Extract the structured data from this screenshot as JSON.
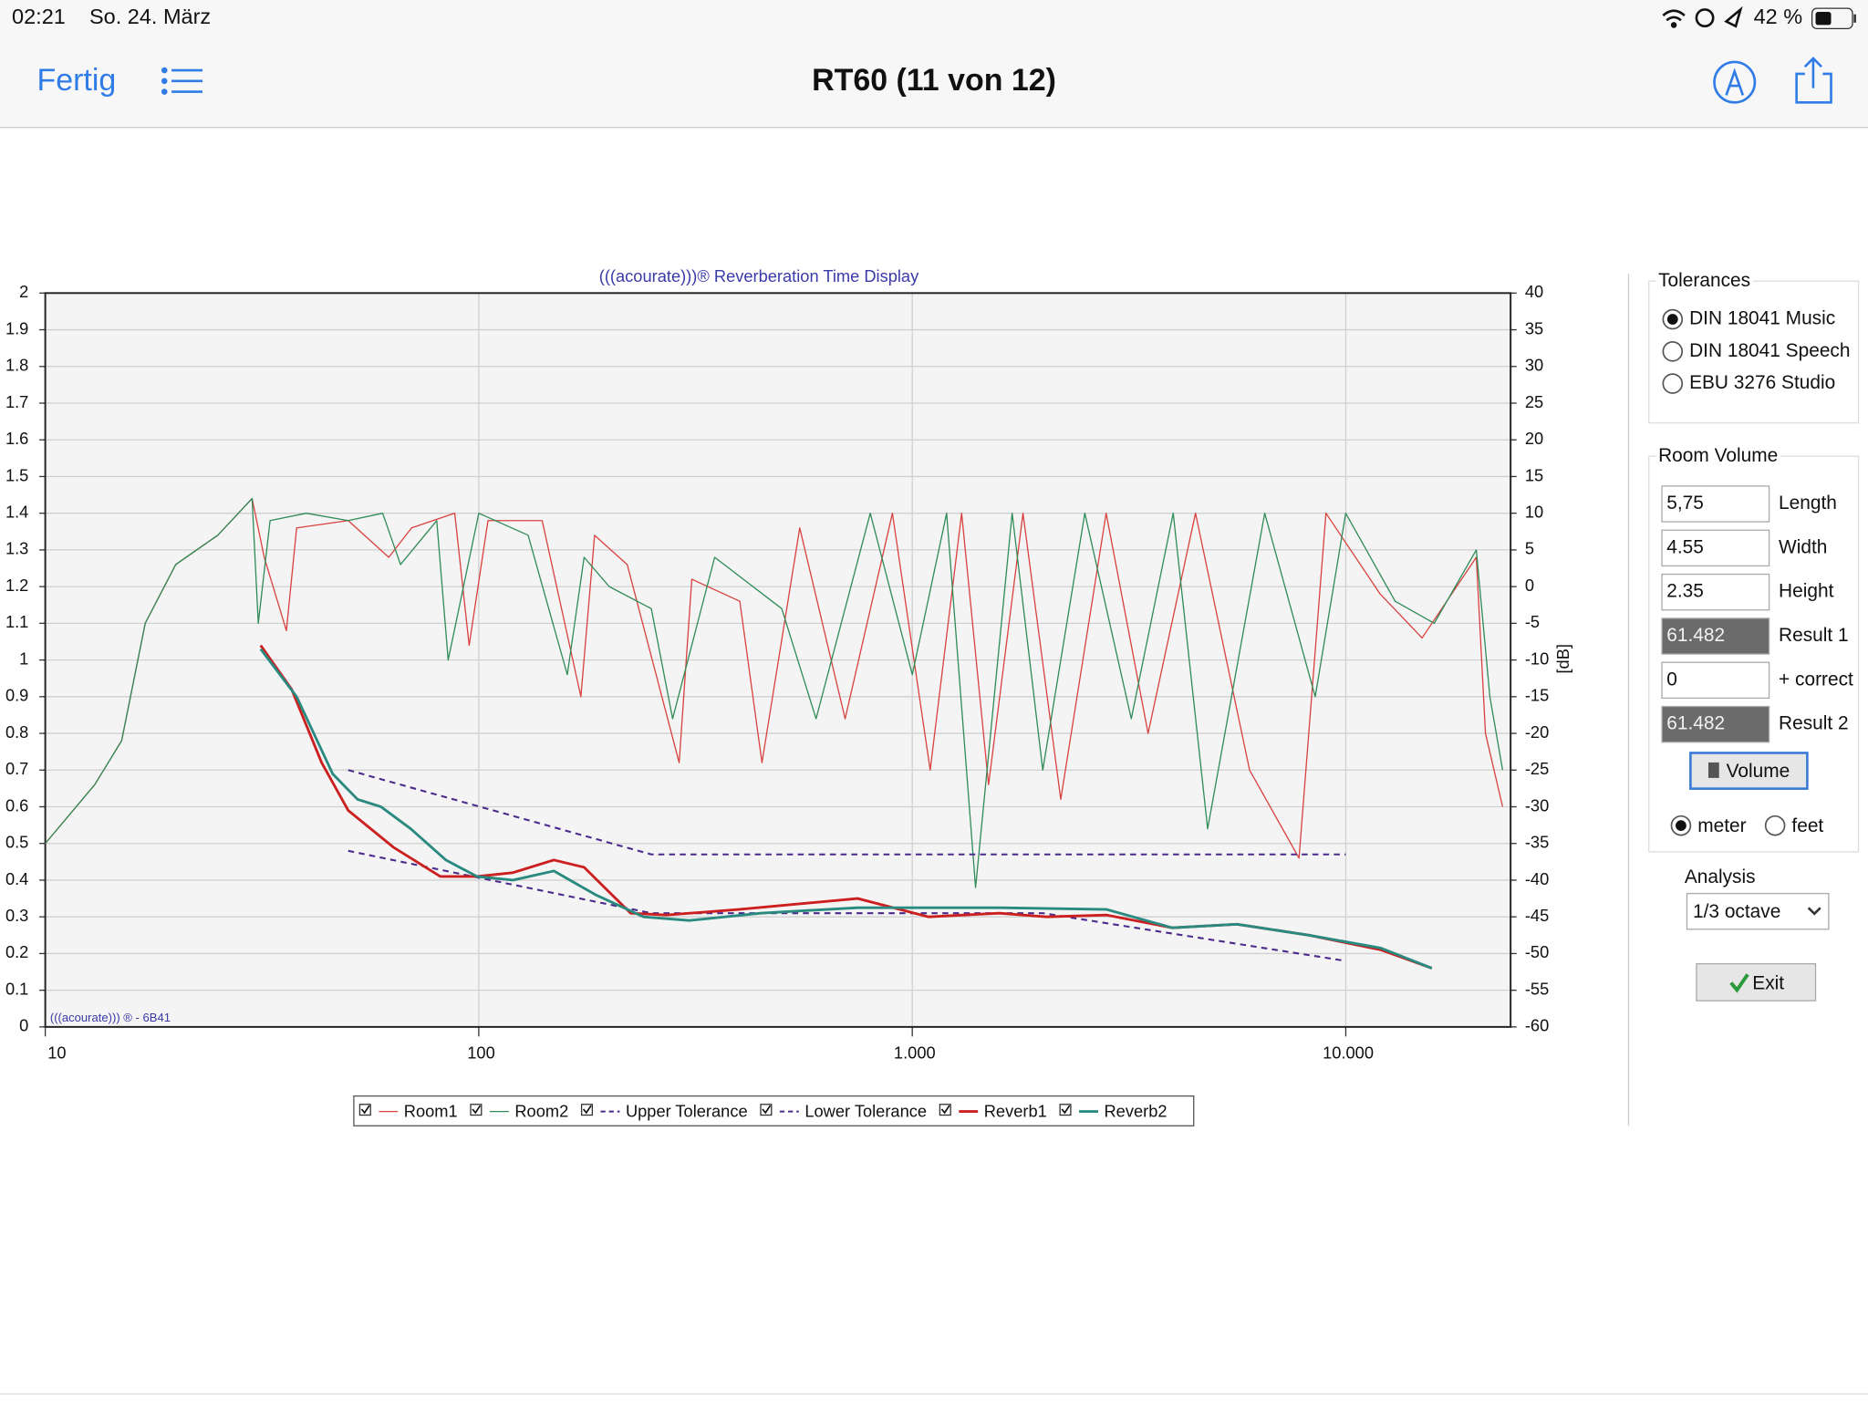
{
  "status_bar": {
    "time": "02:21",
    "date": "So. 24. März",
    "battery": "42 %"
  },
  "nav": {
    "done": "Fertig",
    "title": "RT60 (11 von 12)"
  },
  "chart_data": {
    "type": "line",
    "title": "(((acourate)))® Reverberation Time Display",
    "watermark": "(((acourate))) ® - 6B41",
    "y2label": "[dB]",
    "xscale": "log",
    "grid": true,
    "xlim": [
      10,
      24000
    ],
    "xticks": [
      10,
      100,
      {
        "value": 1000,
        "label": "1.000"
      },
      {
        "value": 10000,
        "label": "10.000"
      }
    ],
    "ylim": [
      0,
      2
    ],
    "yticks": [
      0,
      0.1,
      0.2,
      0.3,
      0.4,
      0.5,
      0.6,
      0.7,
      0.8,
      0.9,
      1,
      1.1,
      1.2,
      1.3,
      1.4,
      1.5,
      1.6,
      1.7,
      1.8,
      1.9,
      2
    ],
    "y2lim": [
      -60,
      40
    ],
    "y2ticks": [
      -60,
      -55,
      -50,
      -45,
      -40,
      -35,
      -30,
      -25,
      -20,
      -15,
      -10,
      -5,
      0,
      5,
      10,
      15,
      20,
      25,
      30,
      35,
      40
    ],
    "series": [
      {
        "name": "Room1",
        "color": "#d8413f",
        "axis": "y2",
        "width": 1,
        "dash": false,
        "x": [
          10,
          13,
          15,
          17,
          20,
          25,
          30,
          32,
          36,
          38,
          50,
          62,
          70,
          88,
          95,
          105,
          140,
          172,
          185,
          220,
          290,
          310,
          400,
          450,
          550,
          700,
          900,
          1100,
          1300,
          1500,
          1800,
          2200,
          2800,
          3500,
          4500,
          6000,
          7800,
          9000,
          12000,
          15000,
          20000,
          21000,
          23000
        ],
        "values": [
          -35,
          -27,
          -21,
          -5,
          3,
          7,
          12,
          4,
          -6,
          8,
          9,
          4,
          8,
          10,
          -8,
          9,
          9,
          -15,
          7,
          3,
          -24,
          1,
          -2,
          -24,
          8,
          -18,
          10,
          -25,
          10,
          -27,
          10,
          -29,
          10,
          -20,
          10,
          -25,
          -37,
          10,
          -1,
          -7,
          4,
          -20,
          -30
        ]
      },
      {
        "name": "Room2",
        "color": "#2f8b57",
        "axis": "y2",
        "width": 1,
        "dash": false,
        "x": [
          10,
          13,
          15,
          17,
          20,
          25,
          30,
          31,
          33,
          40,
          50,
          60,
          66,
          80,
          85,
          100,
          130,
          160,
          175,
          200,
          250,
          280,
          350,
          500,
          600,
          800,
          1000,
          1200,
          1400,
          1700,
          2000,
          2500,
          3200,
          4000,
          4800,
          6500,
          8500,
          10000,
          13000,
          16000,
          20000,
          21500,
          23000
        ],
        "values": [
          -35,
          -27,
          -21,
          -5,
          3,
          7,
          12,
          -5,
          9,
          10,
          9,
          10,
          3,
          9,
          -10,
          10,
          7,
          -12,
          4,
          0,
          -3,
          -18,
          4,
          -3,
          -18,
          10,
          -12,
          10,
          -41,
          10,
          -25,
          10,
          -18,
          10,
          -33,
          10,
          -15,
          10,
          -2,
          -5,
          5,
          -15,
          -25
        ]
      },
      {
        "name": "Upper Tolerance",
        "color": "#4b2a8c",
        "axis": "y",
        "width": 1.6,
        "dash": true,
        "x": [
          50,
          250,
          10000
        ],
        "values": [
          0.7,
          0.47,
          0.47
        ]
      },
      {
        "name": "Lower Tolerance",
        "color": "#4b2a8c",
        "axis": "y",
        "width": 1.6,
        "dash": true,
        "x": [
          50,
          250,
          2000,
          10000
        ],
        "values": [
          0.48,
          0.31,
          0.31,
          0.18
        ]
      },
      {
        "name": "Reverb1",
        "color": "#cc1f1f",
        "axis": "y",
        "width": 2.2,
        "dash": false,
        "x": [
          31.4,
          37,
          43.4,
          50,
          63.5,
          81.5,
          99,
          119.6,
          149,
          175,
          224,
          271,
          398,
          748,
          1090,
          1588,
          2045,
          2810,
          3980,
          5610,
          8220,
          12050,
          15800
        ],
        "values": [
          1.04,
          0.92,
          0.72,
          0.59,
          0.49,
          0.41,
          0.41,
          0.42,
          0.455,
          0.435,
          0.31,
          0.305,
          0.32,
          0.35,
          0.3,
          0.31,
          0.3,
          0.305,
          0.27,
          0.28,
          0.25,
          0.21,
          0.16
        ]
      },
      {
        "name": "Reverb2",
        "color": "#2a8a80",
        "axis": "y",
        "width": 2.2,
        "dash": false,
        "x": [
          31.4,
          38,
          46,
          52.5,
          59.5,
          69.7,
          84,
          99,
          120,
          149,
          186,
          240,
          306,
          447,
          748,
          1588,
          2810,
          3980,
          5610,
          8220,
          12050,
          15800
        ],
        "values": [
          1.03,
          0.9,
          0.69,
          0.62,
          0.6,
          0.54,
          0.455,
          0.41,
          0.4,
          0.425,
          0.36,
          0.3,
          0.29,
          0.31,
          0.325,
          0.325,
          0.32,
          0.27,
          0.28,
          0.25,
          0.215,
          0.16
        ]
      }
    ]
  },
  "panel": {
    "tolerances": {
      "title": "Tolerances",
      "options": [
        "DIN 18041 Music",
        "DIN 18041 Speech",
        "EBU 3276 Studio"
      ],
      "selected": 0
    },
    "room_volume": {
      "title": "Room Volume",
      "fields": [
        {
          "value": "5,75",
          "label": "Length",
          "readonly": false
        },
        {
          "value": "4.55",
          "label": "Width",
          "readonly": false
        },
        {
          "value": "2.35",
          "label": "Height",
          "readonly": false
        },
        {
          "value": "61.482",
          "label": "Result 1",
          "readonly": true
        },
        {
          "value": "0",
          "label": "+ correct",
          "readonly": false
        },
        {
          "value": "61.482",
          "label": "Result 2",
          "readonly": true
        }
      ],
      "button": "Volume",
      "units": [
        "meter",
        "feet"
      ],
      "unit_selected": 0
    },
    "analysis": {
      "title": "Analysis",
      "value": "1/3 octave"
    },
    "exit": "Exit"
  }
}
